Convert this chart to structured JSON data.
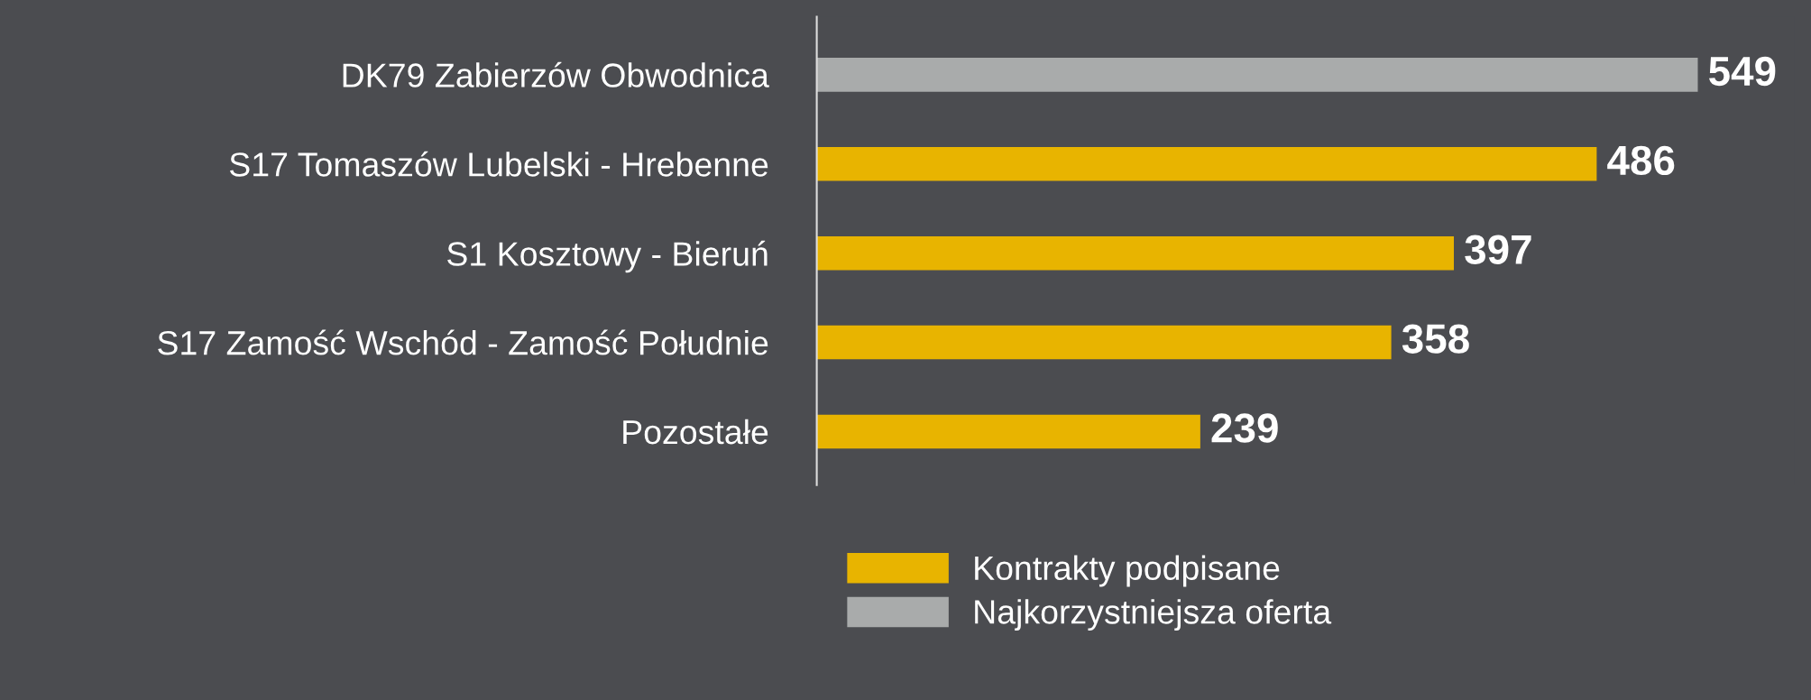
{
  "chart_data": {
    "type": "bar",
    "orientation": "horizontal",
    "categories": [
      "DK79 Zabierzów Obwodnica",
      "S17 Tomaszów Lubelski - Hrebenne",
      "S1 Kosztowy - Bieruń",
      "S17 Zamość Wschód - Zamość Południe",
      "Pozostałe"
    ],
    "series": [
      {
        "name": "Kontrakty podpisane",
        "color": "#e8b400",
        "values": [
          null,
          486,
          397,
          358,
          239
        ]
      },
      {
        "name": "Najkorzystniejsza oferta",
        "color": "#a9abab",
        "values": [
          549,
          null,
          null,
          null,
          null
        ]
      }
    ],
    "data_labels": true,
    "legend": "bottom",
    "grid": false
  }
}
